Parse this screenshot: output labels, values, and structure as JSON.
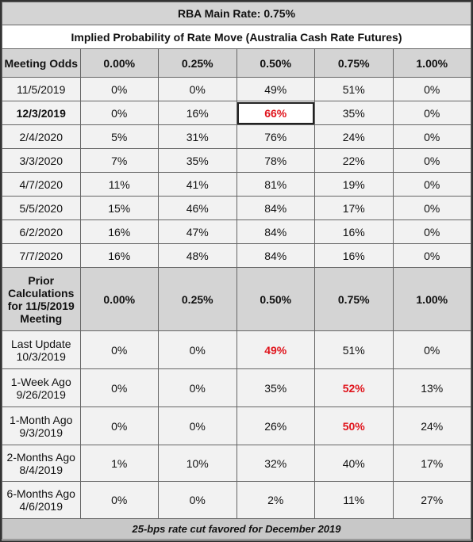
{
  "header": {
    "title": "RBA Main Rate: 0.75%",
    "subtitle": "Implied Probability of Rate Move (Australia Cash Rate Futures)"
  },
  "table": {
    "columns": [
      "Meeting Odds",
      "0.00%",
      "0.25%",
      "0.50%",
      "0.75%",
      "1.00%"
    ],
    "rows": [
      [
        "11/5/2019",
        "0%",
        "0%",
        "49%",
        "51%",
        "0%"
      ],
      [
        "12/3/2019",
        "0%",
        "16%",
        "66%",
        "35%",
        "0%"
      ],
      [
        "2/4/2020",
        "5%",
        "31%",
        "76%",
        "24%",
        "0%"
      ],
      [
        "3/3/2020",
        "7%",
        "35%",
        "78%",
        "22%",
        "0%"
      ],
      [
        "4/7/2020",
        "11%",
        "41%",
        "81%",
        "19%",
        "0%"
      ],
      [
        "5/5/2020",
        "15%",
        "46%",
        "84%",
        "17%",
        "0%"
      ],
      [
        "6/2/2020",
        "16%",
        "47%",
        "84%",
        "16%",
        "0%"
      ],
      [
        "7/7/2020",
        "16%",
        "48%",
        "84%",
        "16%",
        "0%"
      ]
    ]
  },
  "prior": {
    "columns": [
      "Prior Calculations for 11/5/2019 Meeting",
      "0.00%",
      "0.25%",
      "0.50%",
      "0.75%",
      "1.00%"
    ],
    "rows": [
      [
        [
          "Last Update",
          "10/3/2019"
        ],
        "0%",
        "0%",
        "49%",
        "51%",
        "0%"
      ],
      [
        [
          "1-Week Ago",
          "9/26/2019"
        ],
        "0%",
        "0%",
        "35%",
        "52%",
        "13%"
      ],
      [
        [
          "1-Month Ago",
          "9/3/2019"
        ],
        "0%",
        "0%",
        "26%",
        "50%",
        "24%"
      ],
      [
        [
          "2-Months Ago",
          "8/4/2019"
        ],
        "1%",
        "10%",
        "32%",
        "40%",
        "17%"
      ],
      [
        [
          "6-Months Ago",
          "4/6/2019"
        ],
        "0%",
        "0%",
        "2%",
        "11%",
        "27%"
      ]
    ]
  },
  "footer": "25-bps rate cut favored for December 2019"
}
